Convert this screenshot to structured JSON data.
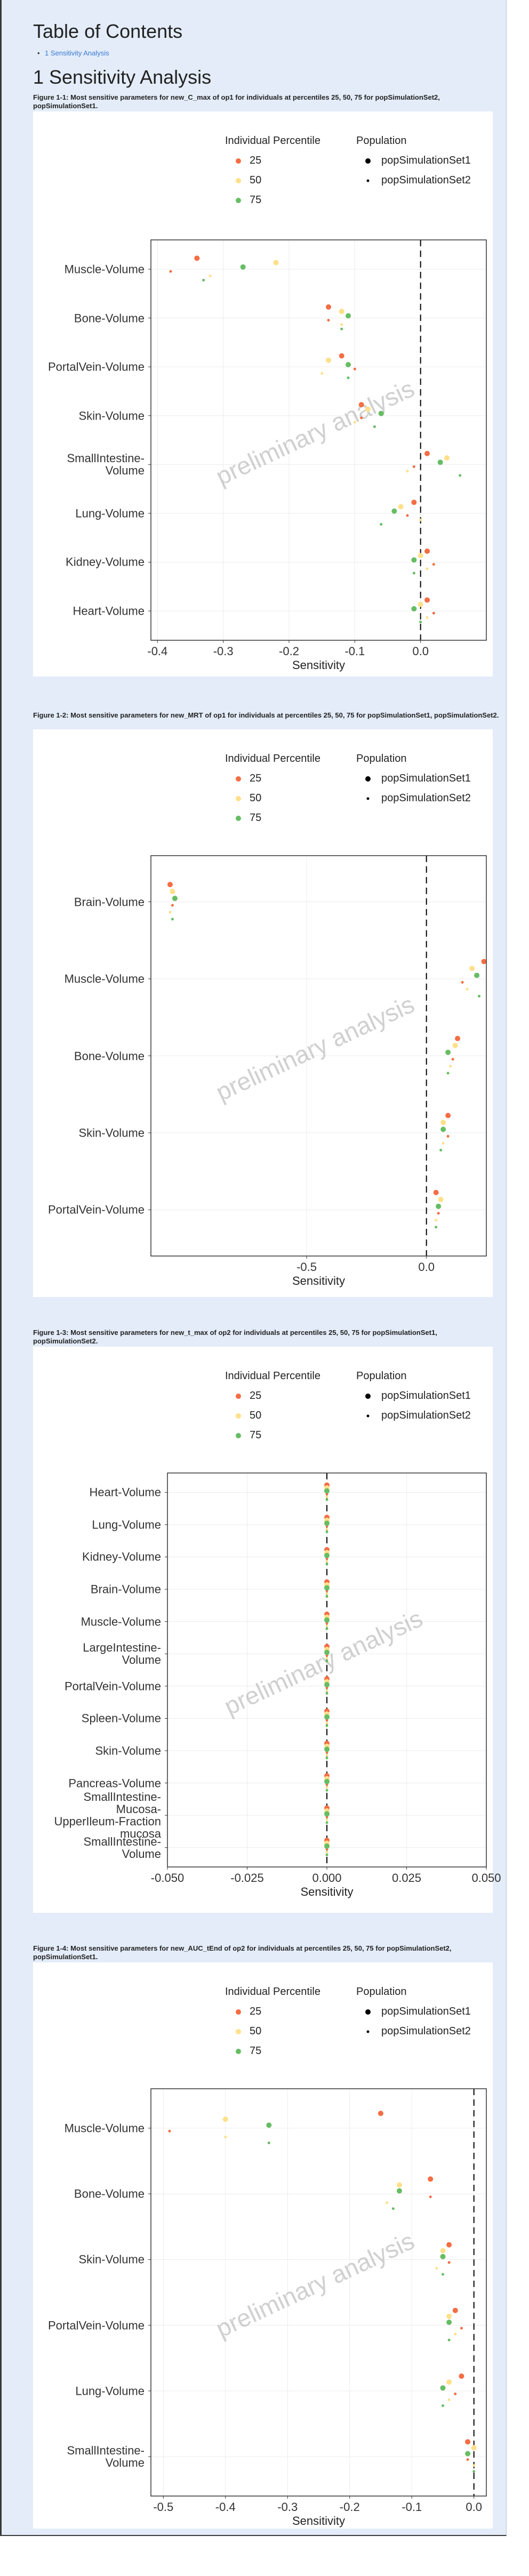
{
  "toc": {
    "title": "Table of Contents",
    "items": [
      "1 Sensitivity Analysis"
    ]
  },
  "section_title": "1 Sensitivity Analysis",
  "chart_data": [
    {
      "type": "dot",
      "title": "Figure 1-1: Most sensitive parameters for new_C_max of op1 for individuals at percentiles 25, 50, 75 for popSimulationSet2, popSimulationSet1.",
      "color_legend_title": "Individual Percentile",
      "shape_legend_title": "Population",
      "populations": [
        "popSimulationSet1",
        "popSimulationSet2"
      ],
      "categories": [
        "Muscle-Volume",
        "Bone-Volume",
        "PortalVein-Volume",
        "Skin-Volume",
        "SmallIntestine-Volume",
        "Lung-Volume",
        "Kidney-Volume",
        "Heart-Volume"
      ],
      "series": [
        {
          "name": "25",
          "color": "#f46d43",
          "values": [
            [
              -0.34,
              -0.14,
              -0.12,
              -0.09,
              0.01,
              -0.01,
              0.01,
              0.01
            ],
            [
              -0.38,
              -0.14,
              -0.1,
              -0.09,
              -0.01,
              -0.02,
              0.02,
              0.02
            ]
          ]
        },
        {
          "name": "50",
          "color": "#fee08b",
          "values": [
            [
              -0.22,
              -0.12,
              -0.14,
              -0.08,
              0.04,
              -0.03,
              0.0,
              0.0
            ],
            [
              -0.32,
              -0.12,
              -0.15,
              -0.1,
              -0.02,
              0.0,
              0.01,
              0.01
            ]
          ]
        },
        {
          "name": "75",
          "color": "#66bd63",
          "values": [
            [
              -0.27,
              -0.11,
              -0.11,
              -0.06,
              0.03,
              -0.04,
              -0.01,
              -0.01
            ],
            [
              -0.33,
              -0.12,
              -0.11,
              -0.07,
              0.06,
              -0.06,
              -0.01,
              0.0
            ]
          ]
        }
      ],
      "x_label": "Sensitivity",
      "xlim": [
        -0.41,
        0.1
      ],
      "xticks": [
        -0.4,
        -0.3,
        -0.2,
        -0.1,
        {
          "value": 0,
          "label": "0.0"
        }
      ],
      "reference_x": 0,
      "grid": true,
      "watermark": "preliminary analysis"
    },
    {
      "type": "dot",
      "title": "Figure 1-2: Most sensitive parameters for new_MRT of op1 for individuals at percentiles 25, 50, 75 for popSimulationSet1, popSimulationSet2.",
      "color_legend_title": "Individual Percentile",
      "shape_legend_title": "Population",
      "populations": [
        "popSimulationSet1",
        "popSimulationSet2"
      ],
      "categories": [
        "Brain-Volume",
        "Muscle-Volume",
        "Bone-Volume",
        "Skin-Volume",
        "PortalVein-Volume"
      ],
      "series": [
        {
          "name": "25",
          "color": "#f46d43",
          "values": [
            [
              -1.07,
              0.24,
              0.13,
              0.09,
              0.04
            ],
            [
              -1.06,
              0.15,
              0.11,
              0.09,
              0.05
            ]
          ]
        },
        {
          "name": "50",
          "color": "#fee08b",
          "values": [
            [
              -1.06,
              0.19,
              0.12,
              0.07,
              0.06
            ],
            [
              -1.07,
              0.17,
              0.1,
              0.07,
              0.04
            ]
          ]
        },
        {
          "name": "75",
          "color": "#66bd63",
          "values": [
            [
              -1.05,
              0.21,
              0.09,
              0.07,
              0.05
            ],
            [
              -1.06,
              0.22,
              0.09,
              0.06,
              0.04
            ]
          ]
        }
      ],
      "x_label": "Sensitivity",
      "xlim": [
        -1.15,
        0.25
      ],
      "xticks": [
        -0.5,
        {
          "value": 0,
          "label": "0.0"
        }
      ],
      "reference_x": 0,
      "grid": true,
      "watermark": "preliminary analysis"
    },
    {
      "type": "dot",
      "title": "Figure 1-3: Most sensitive parameters for new_t_max of op2 for individuals at percentiles 25, 50, 75 for popSimulationSet1, popSimulationSet2.",
      "color_legend_title": "Individual Percentile",
      "shape_legend_title": "Population",
      "populations": [
        "popSimulationSet1",
        "popSimulationSet2"
      ],
      "categories": [
        "Heart-Volume",
        "Lung-Volume",
        "Kidney-Volume",
        "Brain-Volume",
        "Muscle-Volume",
        "LargeIntestine-Volume",
        "PortalVein-Volume",
        "Spleen-Volume",
        "Skin-Volume",
        "Pancreas-Volume",
        "SmallIntestine-Mucosa-UpperIleum-Fraction mucosa",
        "SmallIntestine-Volume"
      ],
      "series": [
        {
          "name": "25",
          "color": "#f46d43",
          "values": [
            [
              0,
              0,
              0,
              0,
              0,
              0,
              0,
              0,
              0,
              0,
              0,
              0
            ],
            [
              0,
              0,
              0,
              0,
              0,
              0,
              0,
              0,
              0,
              0,
              0,
              0
            ]
          ]
        },
        {
          "name": "50",
          "color": "#fee08b",
          "values": [
            [
              0,
              0,
              0,
              0,
              0,
              0,
              0,
              0,
              0,
              0,
              0,
              0
            ],
            [
              0,
              0,
              0,
              0,
              0,
              0,
              0,
              0,
              0,
              0,
              0,
              0
            ]
          ]
        },
        {
          "name": "75",
          "color": "#66bd63",
          "values": [
            [
              0,
              0,
              0,
              0,
              0,
              0,
              0,
              0,
              0,
              0,
              0,
              0
            ],
            [
              0,
              0,
              0,
              0,
              0,
              0,
              0,
              0,
              0,
              0,
              0,
              0
            ]
          ]
        }
      ],
      "x_label": "Sensitivity",
      "xlim": [
        -0.05,
        0.05
      ],
      "xticks": [
        {
          "value": -0.05,
          "label": "-0.050"
        },
        {
          "value": -0.025,
          "label": "-0.025"
        },
        {
          "value": 0,
          "label": "0.000"
        },
        {
          "value": 0.025,
          "label": "0.025"
        },
        {
          "value": 0.05,
          "label": "0.050"
        }
      ],
      "reference_x": 0,
      "grid": true,
      "watermark": "preliminary analysis"
    },
    {
      "type": "dot",
      "title": "Figure 1-4: Most sensitive parameters for new_AUC_tEnd of op2 for individuals at percentiles 25, 50, 75 for popSimulationSet2, popSimulationSet1.",
      "color_legend_title": "Individual Percentile",
      "shape_legend_title": "Population",
      "populations": [
        "popSimulationSet1",
        "popSimulationSet2"
      ],
      "categories": [
        "Muscle-Volume",
        "Bone-Volume",
        "Skin-Volume",
        "PortalVein-Volume",
        "Lung-Volume",
        "SmallIntestine-Volume"
      ],
      "series": [
        {
          "name": "25",
          "color": "#f46d43",
          "values": [
            [
              -0.15,
              -0.07,
              -0.04,
              -0.03,
              -0.02,
              -0.01
            ],
            [
              -0.49,
              -0.07,
              -0.04,
              -0.02,
              -0.03,
              -0.01
            ]
          ]
        },
        {
          "name": "50",
          "color": "#fee08b",
          "values": [
            [
              -0.4,
              -0.12,
              -0.05,
              -0.04,
              -0.04,
              0.0
            ],
            [
              -0.4,
              -0.14,
              -0.06,
              -0.03,
              -0.04,
              0.0
            ]
          ]
        },
        {
          "name": "75",
          "color": "#66bd63",
          "values": [
            [
              -0.33,
              -0.12,
              -0.05,
              -0.04,
              -0.05,
              -0.01
            ],
            [
              -0.33,
              -0.13,
              -0.05,
              -0.04,
              -0.05,
              0.0
            ]
          ]
        }
      ],
      "x_label": "Sensitivity",
      "xlim": [
        -0.52,
        0.02
      ],
      "xticks": [
        -0.5,
        -0.4,
        -0.3,
        -0.2,
        -0.1,
        {
          "value": 0,
          "label": "0.0"
        }
      ],
      "reference_x": 0,
      "grid": true,
      "watermark": "preliminary analysis"
    }
  ]
}
